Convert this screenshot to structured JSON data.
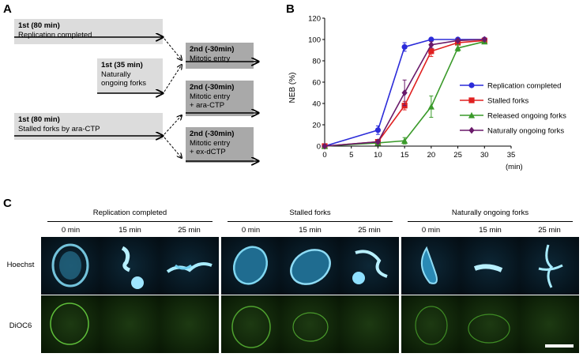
{
  "panels": {
    "a": "A",
    "b": "B",
    "c": "C"
  },
  "panel_a": {
    "box1": {
      "title": "1st (80 min)",
      "text": "Replication completed"
    },
    "box2": {
      "title": "1st (35 min)",
      "line1": "Naturally",
      "line2": "ongoing forks"
    },
    "box3": {
      "title": "1st (80 min)",
      "text": "Stalled forks by ara-CTP"
    },
    "box4": {
      "title": "2nd (-30min)",
      "text": "Mitotic entry"
    },
    "box5": {
      "title": "2nd (-30min)",
      "line1": "Mitotic entry",
      "line2": "+ ara-CTP"
    },
    "box6": {
      "title": "2nd (-30min)",
      "line1": "Mitotic entry",
      "line2": "+ ex-dCTP"
    }
  },
  "chart_data": {
    "type": "line",
    "ylabel": "NEB (%)",
    "xunit": "(min)",
    "x": [
      0,
      10,
      15,
      20,
      25,
      30
    ],
    "xticks": [
      "0",
      "5",
      "10",
      "15",
      "20",
      "25",
      "30",
      "35"
    ],
    "yticks": [
      "0",
      "20",
      "40",
      "60",
      "80",
      "100",
      "120"
    ],
    "xlim": [
      0,
      35
    ],
    "ylim": [
      0,
      120
    ],
    "series": [
      {
        "name": "Replication completed",
        "color": "#2b2bd9",
        "marker": "circle",
        "values": [
          0,
          15,
          93,
          100,
          100,
          100
        ],
        "err": [
          0,
          4,
          4,
          0,
          0,
          0
        ]
      },
      {
        "name": "Stalled forks",
        "color": "#e02020",
        "marker": "square",
        "values": [
          0,
          4,
          38,
          89,
          97,
          99
        ],
        "err": [
          0,
          1,
          4,
          5,
          2,
          1
        ]
      },
      {
        "name": "Released ongoing forks",
        "color": "#3a9a2a",
        "marker": "triangle",
        "values": [
          0,
          3,
          5,
          37,
          92,
          98
        ],
        "err": [
          0,
          1,
          3,
          10,
          3,
          1
        ]
      },
      {
        "name": "Naturally ongoing forks",
        "color": "#6a1a6a",
        "marker": "diamond",
        "values": [
          0,
          4,
          50,
          95,
          99,
          100
        ],
        "err": [
          0,
          1,
          12,
          3,
          1,
          0
        ]
      }
    ]
  },
  "panel_c": {
    "groups": [
      "Replication completed",
      "Stalled forks",
      "Naturally ongoing forks"
    ],
    "times": [
      "0 min",
      "15 min",
      "25 min",
      "0 min",
      "15 min",
      "25 min",
      "0 min",
      "15 min",
      "25 min"
    ],
    "rows": [
      "Hoechst",
      "DiOC6"
    ]
  }
}
